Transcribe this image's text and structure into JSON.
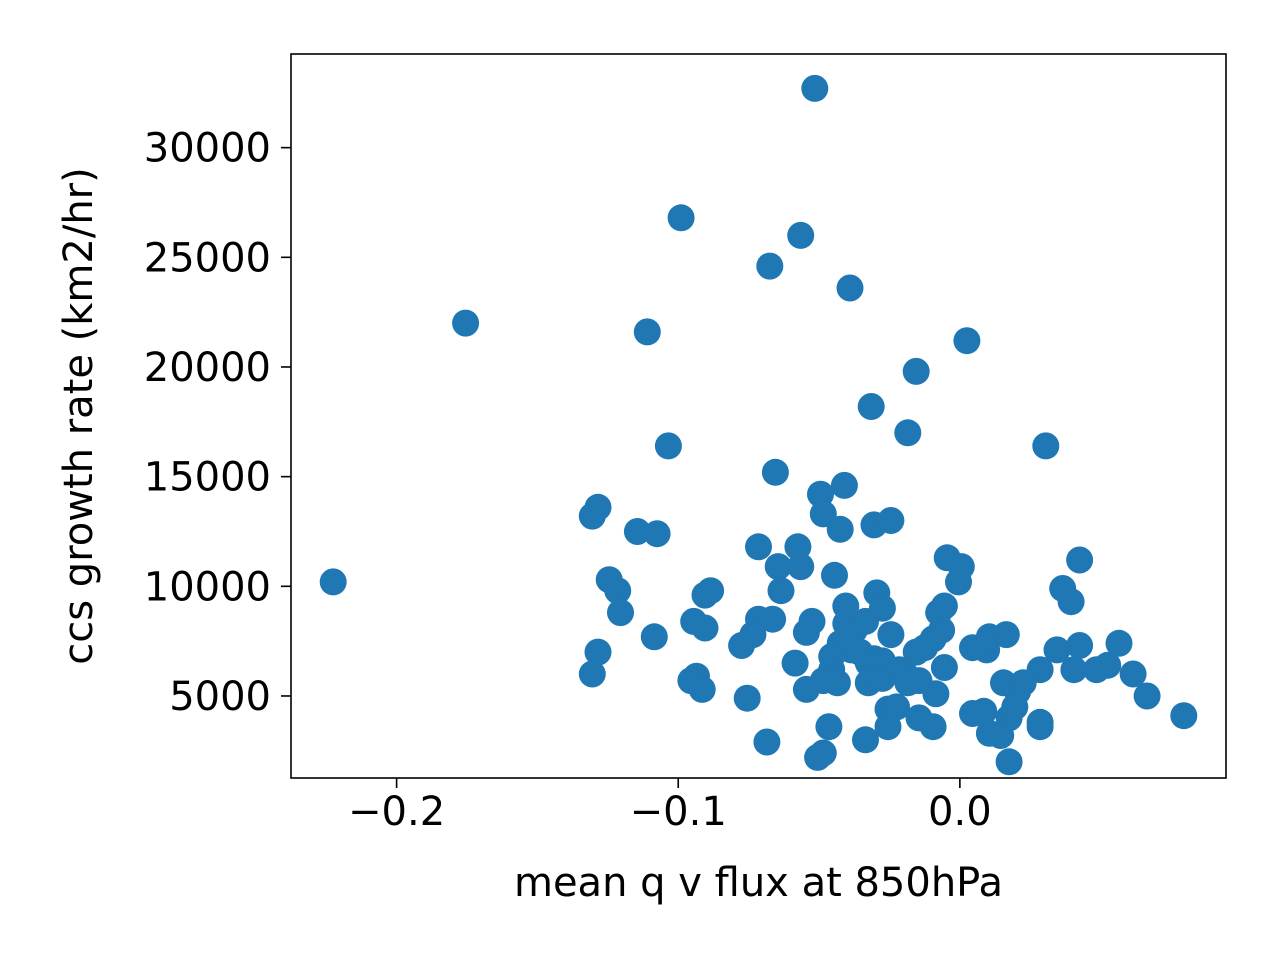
{
  "chart_data": {
    "type": "scatter",
    "title": "",
    "xlabel": "mean q v flux at 850hPa",
    "ylabel": "ccs growth rate (km2/hr)",
    "xlim": [
      -0.2375,
      0.0945
    ],
    "ylim": [
      1260,
      34270
    ],
    "xticks": [
      {
        "value": -0.2,
        "label": "−0.2"
      },
      {
        "value": -0.1,
        "label": "−0.1"
      },
      {
        "value": 0.0,
        "label": "0.0"
      }
    ],
    "yticks": [
      {
        "value": 5000,
        "label": "5000"
      },
      {
        "value": 10000,
        "label": "10000"
      },
      {
        "value": 15000,
        "label": "15000"
      },
      {
        "value": 20000,
        "label": "20000"
      },
      {
        "value": 25000,
        "label": "25000"
      },
      {
        "value": 30000,
        "label": "30000"
      }
    ],
    "grid": false,
    "marker_color": "#1f77b4",
    "series": [
      {
        "name": "",
        "points": [
          [
            -0.2225,
            10200
          ],
          [
            -0.1755,
            22000
          ],
          [
            -0.099,
            26800
          ],
          [
            -0.0515,
            32700
          ],
          [
            -0.0565,
            26000
          ],
          [
            -0.0675,
            24600
          ],
          [
            -0.039,
            23600
          ],
          [
            -0.111,
            21600
          ],
          [
            0.0025,
            21200
          ],
          [
            -0.0155,
            19800
          ],
          [
            -0.0315,
            18200
          ],
          [
            -0.0185,
            17000
          ],
          [
            -0.1035,
            16400
          ],
          [
            0.0305,
            16400
          ],
          [
            -0.0655,
            15200
          ],
          [
            -0.041,
            14600
          ],
          [
            -0.0495,
            14200
          ],
          [
            -0.1285,
            13600
          ],
          [
            -0.1305,
            13200
          ],
          [
            -0.0485,
            13300
          ],
          [
            -0.0305,
            12800
          ],
          [
            -0.0245,
            13000
          ],
          [
            -0.1145,
            12500
          ],
          [
            -0.1075,
            12400
          ],
          [
            -0.0425,
            12600
          ],
          [
            -0.0715,
            11800
          ],
          [
            -0.0575,
            11800
          ],
          [
            -0.0645,
            10900
          ],
          [
            -0.0565,
            10900
          ],
          [
            -0.0045,
            11300
          ],
          [
            0.0005,
            10900
          ],
          [
            0.0425,
            11200
          ],
          [
            -0.1245,
            10300
          ],
          [
            -0.1215,
            9800
          ],
          [
            -0.0445,
            10500
          ],
          [
            -0.0635,
            9800
          ],
          [
            -0.0885,
            9800
          ],
          [
            -0.0905,
            9600
          ],
          [
            -0.0405,
            9100
          ],
          [
            -0.0295,
            9700
          ],
          [
            -0.0275,
            9000
          ],
          [
            -0.0055,
            9100
          ],
          [
            -0.0075,
            8800
          ],
          [
            -0.0005,
            10200
          ],
          [
            0.0365,
            9900
          ],
          [
            0.0395,
            9300
          ],
          [
            -0.1205,
            8800
          ],
          [
            -0.0945,
            8400
          ],
          [
            -0.0905,
            8100
          ],
          [
            -0.0715,
            8500
          ],
          [
            -0.0665,
            8500
          ],
          [
            -0.0525,
            8400
          ],
          [
            -0.0545,
            7900
          ],
          [
            -0.0405,
            8300
          ],
          [
            -0.0375,
            8000
          ],
          [
            -0.0335,
            8400
          ],
          [
            -0.0245,
            7800
          ],
          [
            -0.0065,
            8000
          ],
          [
            -0.1085,
            7700
          ],
          [
            -0.0775,
            7300
          ],
          [
            -0.0735,
            7800
          ],
          [
            -0.0425,
            7400
          ],
          [
            -0.0385,
            7100
          ],
          [
            -0.0455,
            6800
          ],
          [
            -0.0355,
            7000
          ],
          [
            -0.0305,
            6700
          ],
          [
            -0.0275,
            6600
          ],
          [
            -0.0155,
            7000
          ],
          [
            -0.0125,
            7200
          ],
          [
            -0.0095,
            7600
          ],
          [
            0.0045,
            7200
          ],
          [
            0.0095,
            7100
          ],
          [
            0.0105,
            7700
          ],
          [
            0.0165,
            7800
          ],
          [
            0.0345,
            7100
          ],
          [
            0.0425,
            7300
          ],
          [
            0.0565,
            7400
          ],
          [
            -0.1285,
            7000
          ],
          [
            -0.1305,
            6000
          ],
          [
            -0.0585,
            6500
          ],
          [
            -0.0455,
            6200
          ],
          [
            -0.0325,
            6500
          ],
          [
            -0.0215,
            6200
          ],
          [
            -0.0195,
            6000
          ],
          [
            -0.0055,
            6300
          ],
          [
            0.0285,
            6200
          ],
          [
            0.0405,
            6200
          ],
          [
            0.0485,
            6200
          ],
          [
            0.0525,
            6400
          ],
          [
            0.0615,
            6000
          ],
          [
            -0.0935,
            5900
          ],
          [
            -0.0955,
            5700
          ],
          [
            -0.0915,
            5300
          ],
          [
            -0.0545,
            5300
          ],
          [
            -0.0485,
            5700
          ],
          [
            -0.0435,
            5600
          ],
          [
            -0.0325,
            5600
          ],
          [
            -0.0275,
            5800
          ],
          [
            -0.0185,
            5600
          ],
          [
            -0.0145,
            5700
          ],
          [
            -0.0085,
            5100
          ],
          [
            0.0155,
            5600
          ],
          [
            0.0205,
            5200
          ],
          [
            0.0225,
            5600
          ],
          [
            0.0665,
            5000
          ],
          [
            -0.0755,
            4900
          ],
          [
            -0.0255,
            4400
          ],
          [
            -0.0225,
            4500
          ],
          [
            -0.0145,
            4000
          ],
          [
            0.0045,
            4200
          ],
          [
            0.0085,
            4300
          ],
          [
            0.0175,
            4000
          ],
          [
            0.0195,
            4500
          ],
          [
            0.0795,
            4100
          ],
          [
            -0.0465,
            3600
          ],
          [
            -0.0255,
            3600
          ],
          [
            -0.0095,
            3600
          ],
          [
            0.0105,
            3300
          ],
          [
            0.0145,
            3200
          ],
          [
            0.0285,
            3800
          ],
          [
            0.0285,
            3600
          ],
          [
            -0.0685,
            2900
          ],
          [
            -0.0335,
            3000
          ],
          [
            -0.0485,
            2400
          ],
          [
            -0.0505,
            2200
          ],
          [
            0.0175,
            2000
          ]
        ]
      }
    ]
  }
}
